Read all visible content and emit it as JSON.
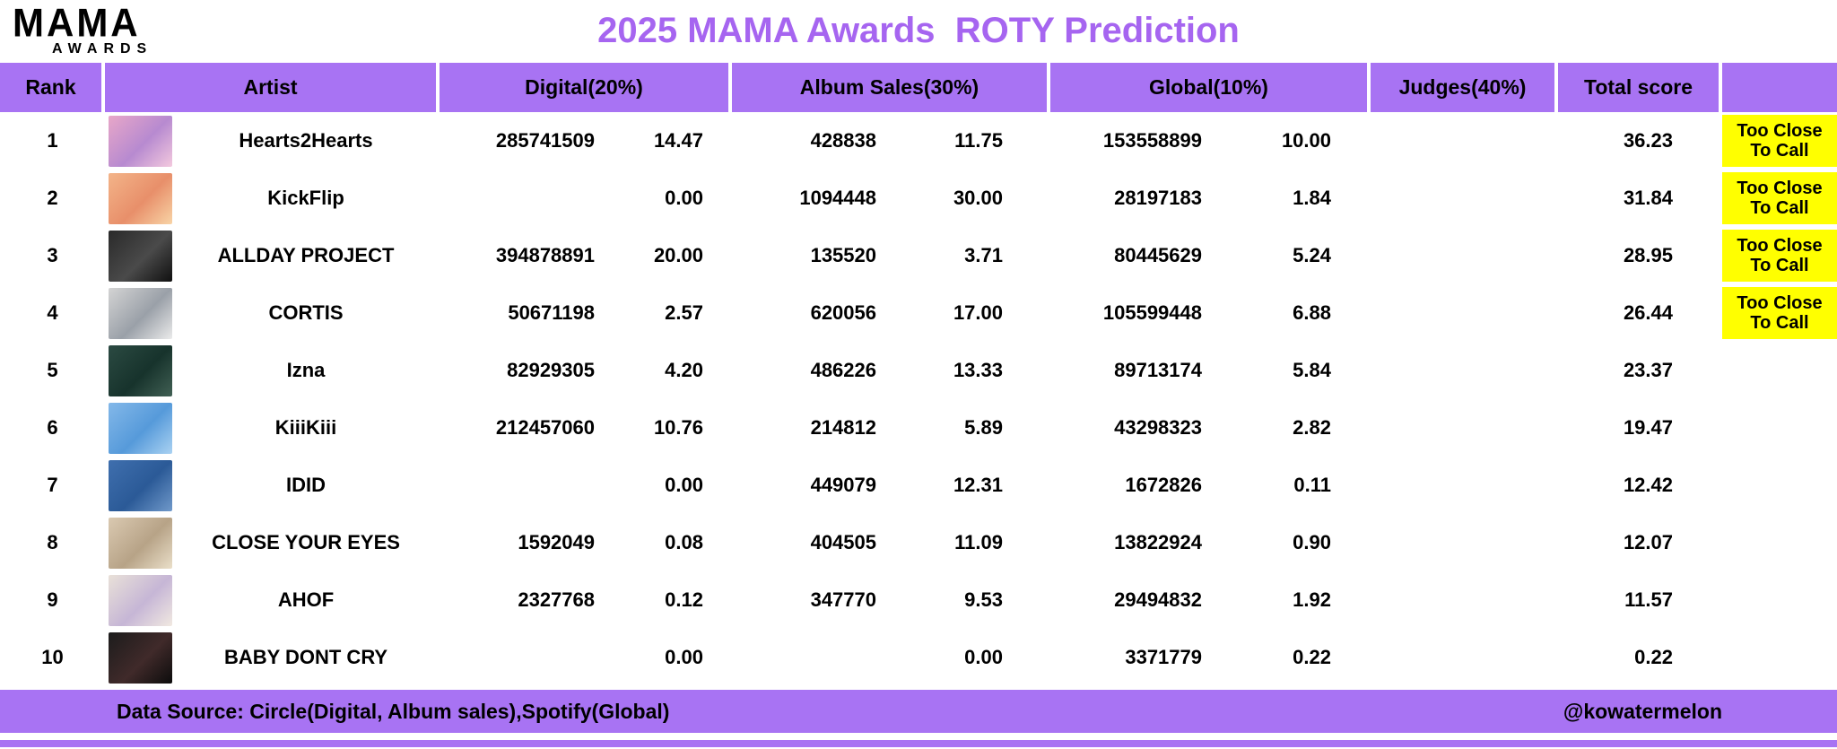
{
  "logo": {
    "main": "MAMA",
    "sub": "AWARDS"
  },
  "colors": {
    "purple": "#a873f3",
    "yellow": "#ffff00",
    "title_purple": "#a665f0"
  },
  "chart_data": {
    "type": "table",
    "title": "2025 MAMA Awards  ROTY Prediction",
    "columns": [
      "Rank",
      "Artist",
      "Digital(20%)",
      "Album Sales(30%)",
      "Global(10%)",
      "Judges(40%)",
      "Total score",
      ""
    ],
    "rows": [
      {
        "rank": "1",
        "artist": "Hearts2Hearts",
        "digital_value": "285741509",
        "digital_score": "14.47",
        "album_value": "428838",
        "album_score": "11.75",
        "global_value": "153558899",
        "global_score": "10.00",
        "judges": "",
        "total": "36.23",
        "badge": "Too Close To Call"
      },
      {
        "rank": "2",
        "artist": "KickFlip",
        "digital_value": "",
        "digital_score": "0.00",
        "album_value": "1094448",
        "album_score": "30.00",
        "global_value": "28197183",
        "global_score": "1.84",
        "judges": "",
        "total": "31.84",
        "badge": "Too Close To Call"
      },
      {
        "rank": "3",
        "artist": "ALLDAY PROJECT",
        "digital_value": "394878891",
        "digital_score": "20.00",
        "album_value": "135520",
        "album_score": "3.71",
        "global_value": "80445629",
        "global_score": "5.24",
        "judges": "",
        "total": "28.95",
        "badge": "Too Close To Call"
      },
      {
        "rank": "4",
        "artist": "CORTIS",
        "digital_value": "50671198",
        "digital_score": "2.57",
        "album_value": "620056",
        "album_score": "17.00",
        "global_value": "105599448",
        "global_score": "6.88",
        "judges": "",
        "total": "26.44",
        "badge": "Too Close To Call"
      },
      {
        "rank": "5",
        "artist": "Izna",
        "digital_value": "82929305",
        "digital_score": "4.20",
        "album_value": "486226",
        "album_score": "13.33",
        "global_value": "89713174",
        "global_score": "5.84",
        "judges": "",
        "total": "23.37",
        "badge": ""
      },
      {
        "rank": "6",
        "artist": "KiiiKiii",
        "digital_value": "212457060",
        "digital_score": "10.76",
        "album_value": "214812",
        "album_score": "5.89",
        "global_value": "43298323",
        "global_score": "2.82",
        "judges": "",
        "total": "19.47",
        "badge": ""
      },
      {
        "rank": "7",
        "artist": "IDID",
        "digital_value": "",
        "digital_score": "0.00",
        "album_value": "449079",
        "album_score": "12.31",
        "global_value": "1672826",
        "global_score": "0.11",
        "judges": "",
        "total": "12.42",
        "badge": ""
      },
      {
        "rank": "8",
        "artist": "CLOSE YOUR EYES",
        "digital_value": "1592049",
        "digital_score": "0.08",
        "album_value": "404505",
        "album_score": "11.09",
        "global_value": "13822924",
        "global_score": "0.90",
        "judges": "",
        "total": "12.07",
        "badge": ""
      },
      {
        "rank": "9",
        "artist": "AHOF",
        "digital_value": "2327768",
        "digital_score": "0.12",
        "album_value": "347770",
        "album_score": "9.53",
        "global_value": "29494832",
        "global_score": "1.92",
        "judges": "",
        "total": "11.57",
        "badge": ""
      },
      {
        "rank": "10",
        "artist": "BABY DONT CRY",
        "digital_value": "",
        "digital_score": "0.00",
        "album_value": "",
        "album_score": "0.00",
        "global_value": "3371779",
        "global_score": "0.22",
        "judges": "",
        "total": "0.22",
        "badge": ""
      }
    ]
  },
  "footer": {
    "source": "Data Source: Circle(Digital, Album sales),Spotify(Global)",
    "credit": "@kowatermelon"
  }
}
